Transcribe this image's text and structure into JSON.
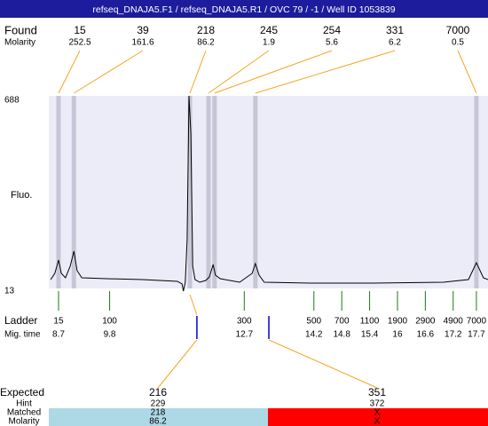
{
  "header": {
    "title": "refseq_DNAJA5.F1 / refseq_DNAJA5.R1 / OVC 79 / -1 / Well ID 1053839"
  },
  "found": {
    "label": "Found",
    "molarity_label": "Molarity",
    "peaks": [
      {
        "size": 15,
        "molarity": 252.5,
        "time": 8.7
      },
      {
        "size": 39,
        "molarity": 161.6,
        "time": 9.03
      },
      {
        "size": 218,
        "molarity": 86.2,
        "time": 11.53
      },
      {
        "size": 245,
        "molarity": 1.9,
        "time": 11.93
      },
      {
        "size": 254,
        "molarity": 5.6,
        "time": 12.06
      },
      {
        "size": 331,
        "molarity": 6.2,
        "time": 12.94
      },
      {
        "size": 7000,
        "molarity": 0.5,
        "time": 17.7
      }
    ]
  },
  "plot": {
    "ylabel": "Fluo.",
    "ylim": [
      13,
      688
    ],
    "yticks": [
      13,
      688
    ],
    "xlim": [
      8.49,
      17.95
    ],
    "trace": {
      "x": [
        8.53,
        8.62,
        8.7,
        8.76,
        8.85,
        8.95,
        9.03,
        9.1,
        9.2,
        9.73,
        10.5,
        11.26,
        11.36,
        11.39,
        11.43,
        11.47,
        11.51,
        11.55,
        11.59,
        11.64,
        11.74,
        11.87,
        11.95,
        12.03,
        12.08,
        12.18,
        12.6,
        12.87,
        12.94,
        13.02,
        13.13,
        14.13,
        15.47,
        16.99,
        17.53,
        17.62,
        17.7,
        17.78,
        17.85,
        17.95
      ],
      "values": [
        44.1,
        65.9,
        112.5,
        65.9,
        50.3,
        90.8,
        143.6,
        75.2,
        50.3,
        47.2,
        44.1,
        37.9,
        28.6,
        3.7,
        34.8,
        184.1,
        688,
        557.4,
        90.8,
        44.1,
        34.8,
        41,
        53.4,
        97,
        59.7,
        47.2,
        34.8,
        65.9,
        100.1,
        59.7,
        34.8,
        31.7,
        31.7,
        34.8,
        44.1,
        75.2,
        103.2,
        75.2,
        50.3,
        44.1
      ]
    }
  },
  "ladder": {
    "label": "Ladder",
    "time_label": "Mig. time",
    "sizes": [
      15,
      100,
      300,
      500,
      700,
      1100,
      1900,
      2900,
      4900,
      7000
    ],
    "times": [
      8.7,
      9.8,
      12.7,
      14.2,
      14.8,
      15.4,
      16,
      16.6,
      17.2,
      17.7
    ]
  },
  "expected": {
    "label": "Expected",
    "hint_label": "Hint",
    "matched_label": "Matched",
    "molarity_label": "Molarity",
    "items": [
      {
        "size": 216,
        "hint": 229,
        "matched": 218,
        "molarity": 86.2,
        "time": 11.68
      },
      {
        "size": 351,
        "hint": 372,
        "matched": "X",
        "molarity": "X",
        "time": 13.23
      }
    ]
  }
}
